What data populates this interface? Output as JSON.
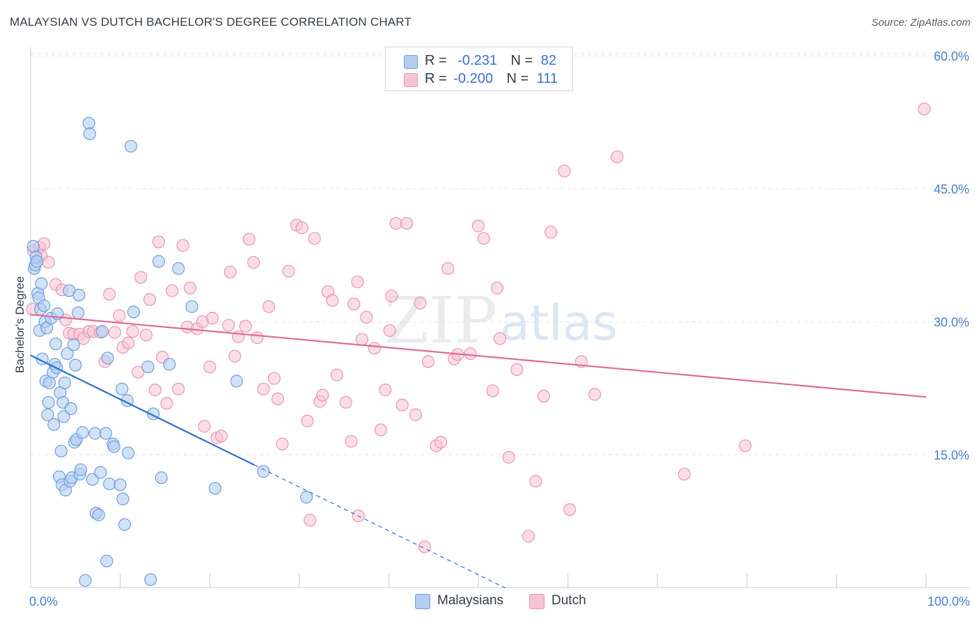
{
  "title": "MALAYSIAN VS DUTCH BACHELOR'S DEGREE CORRELATION CHART",
  "source": "Source: ZipAtlas.com",
  "watermark": {
    "zip": "ZIP",
    "atlas": "atlas"
  },
  "legend": {
    "rows": [
      {
        "r_label": "R =",
        "r_value": "-0.231",
        "n_label": "N =",
        "n_value": "82"
      },
      {
        "r_label": "R =",
        "r_value": "-0.200",
        "n_label": "N =",
        "n_value": "111"
      }
    ]
  },
  "bottom_legend": [
    "Malaysians",
    "Dutch"
  ],
  "colors": {
    "blue_fill": "#b3cdf0",
    "blue_stroke": "#6f9ede",
    "blue_line": "#2f6fd3",
    "pink_fill": "#f6c3d3",
    "pink_stroke": "#ec94b3",
    "pink_line": "#e0689a",
    "grid": "#dde1e6",
    "axis_text": "#4a7fd0"
  },
  "chart_data": {
    "type": "scatter",
    "title": "MALAYSIAN VS DUTCH BACHELOR'S DEGREE CORRELATION CHART",
    "xlabel": "",
    "ylabel": "Bachelor's Degree",
    "xlim": [
      0,
      100
    ],
    "ylim": [
      0,
      61
    ],
    "y_ticks": [
      15,
      30,
      45,
      60
    ],
    "y_tick_labels": [
      "15.0%",
      "30.0%",
      "45.0%",
      "60.0%"
    ],
    "x_tick_labels": [
      "0.0%",
      "100.0%"
    ],
    "grid": true,
    "series": [
      {
        "name": "Malaysians",
        "r": -0.231,
        "n": 82,
        "trend": {
          "x0": 0,
          "y0": 26.2,
          "x_solid_end": 25,
          "x_dash_end": 53,
          "slope": -0.495
        },
        "points": [
          [
            0.3,
            38.5
          ],
          [
            0.4,
            36.0
          ],
          [
            0.5,
            36.4
          ],
          [
            0.6,
            37.3
          ],
          [
            0.7,
            36.8
          ],
          [
            0.8,
            33.2
          ],
          [
            0.9,
            32.7
          ],
          [
            1.0,
            29.0
          ],
          [
            1.1,
            31.4
          ],
          [
            1.2,
            34.3
          ],
          [
            1.3,
            25.8
          ],
          [
            1.5,
            31.8
          ],
          [
            1.6,
            30.0
          ],
          [
            1.7,
            23.3
          ],
          [
            1.8,
            29.3
          ],
          [
            1.9,
            19.5
          ],
          [
            2.0,
            20.9
          ],
          [
            2.1,
            23.1
          ],
          [
            2.3,
            30.4
          ],
          [
            2.5,
            24.3
          ],
          [
            2.6,
            18.4
          ],
          [
            2.7,
            25.2
          ],
          [
            2.8,
            27.5
          ],
          [
            2.9,
            24.8
          ],
          [
            3.0,
            30.9
          ],
          [
            3.2,
            12.5
          ],
          [
            3.3,
            22.0
          ],
          [
            3.4,
            15.4
          ],
          [
            3.5,
            11.6
          ],
          [
            3.6,
            20.9
          ],
          [
            3.7,
            19.3
          ],
          [
            3.8,
            23.1
          ],
          [
            3.9,
            11.0
          ],
          [
            4.1,
            26.4
          ],
          [
            4.3,
            33.5
          ],
          [
            4.4,
            12.0
          ],
          [
            4.5,
            20.2
          ],
          [
            4.6,
            12.4
          ],
          [
            4.8,
            27.4
          ],
          [
            4.9,
            16.4
          ],
          [
            5.0,
            25.1
          ],
          [
            5.1,
            16.7
          ],
          [
            5.3,
            31.0
          ],
          [
            5.4,
            33.0
          ],
          [
            5.5,
            12.8
          ],
          [
            5.6,
            13.3
          ],
          [
            5.8,
            17.5
          ],
          [
            6.1,
            0.8
          ],
          [
            6.5,
            52.4
          ],
          [
            6.6,
            51.2
          ],
          [
            6.9,
            12.2
          ],
          [
            7.2,
            17.4
          ],
          [
            7.3,
            8.4
          ],
          [
            7.6,
            8.2
          ],
          [
            7.8,
            13.0
          ],
          [
            8.0,
            28.9
          ],
          [
            8.4,
            17.4
          ],
          [
            8.5,
            3.0
          ],
          [
            8.6,
            25.9
          ],
          [
            8.8,
            11.7
          ],
          [
            9.2,
            16.2
          ],
          [
            9.3,
            15.9
          ],
          [
            10.0,
            11.6
          ],
          [
            10.2,
            22.4
          ],
          [
            10.3,
            10.0
          ],
          [
            10.5,
            7.1
          ],
          [
            10.8,
            21.1
          ],
          [
            10.9,
            15.2
          ],
          [
            11.2,
            49.8
          ],
          [
            11.5,
            31.1
          ],
          [
            13.1,
            24.9
          ],
          [
            13.4,
            0.9
          ],
          [
            13.7,
            19.6
          ],
          [
            14.3,
            36.8
          ],
          [
            14.6,
            12.4
          ],
          [
            15.5,
            25.2
          ],
          [
            16.5,
            36.0
          ],
          [
            18.0,
            31.7
          ],
          [
            20.6,
            11.2
          ],
          [
            23.0,
            23.3
          ],
          [
            26.0,
            13.1
          ],
          [
            30.8,
            10.2
          ]
        ]
      },
      {
        "name": "Dutch",
        "r": -0.2,
        "n": 111,
        "trend": {
          "x0": 0,
          "y0": 30.8,
          "x_end": 100,
          "y_end": 21.5
        },
        "points": [
          [
            0.2,
            31.4
          ],
          [
            0.3,
            38.0
          ],
          [
            1.0,
            38.4
          ],
          [
            1.2,
            37.4
          ],
          [
            1.5,
            38.8
          ],
          [
            2.0,
            36.7
          ],
          [
            2.8,
            34.2
          ],
          [
            3.5,
            33.6
          ],
          [
            3.9,
            30.2
          ],
          [
            4.3,
            28.7
          ],
          [
            4.8,
            28.6
          ],
          [
            5.5,
            28.6
          ],
          [
            5.9,
            28.1
          ],
          [
            6.5,
            28.9
          ],
          [
            7.0,
            28.9
          ],
          [
            7.8,
            28.8
          ],
          [
            8.3,
            25.5
          ],
          [
            8.8,
            33.1
          ],
          [
            9.4,
            28.8
          ],
          [
            9.9,
            30.7
          ],
          [
            10.3,
            27.1
          ],
          [
            10.9,
            27.6
          ],
          [
            11.4,
            28.9
          ],
          [
            12.0,
            24.3
          ],
          [
            12.3,
            35.0
          ],
          [
            12.9,
            28.5
          ],
          [
            13.3,
            32.5
          ],
          [
            13.9,
            22.3
          ],
          [
            14.3,
            39.0
          ],
          [
            14.7,
            26.0
          ],
          [
            15.2,
            20.8
          ],
          [
            15.8,
            33.5
          ],
          [
            16.5,
            22.4
          ],
          [
            17.0,
            38.6
          ],
          [
            17.5,
            29.4
          ],
          [
            17.8,
            33.8
          ],
          [
            18.6,
            29.2
          ],
          [
            19.2,
            30.0
          ],
          [
            19.4,
            18.2
          ],
          [
            20.0,
            24.9
          ],
          [
            20.3,
            30.4
          ],
          [
            20.8,
            16.9
          ],
          [
            21.3,
            17.1
          ],
          [
            22.1,
            29.6
          ],
          [
            22.3,
            35.6
          ],
          [
            22.8,
            26.1
          ],
          [
            23.2,
            28.3
          ],
          [
            24.0,
            29.5
          ],
          [
            24.4,
            39.3
          ],
          [
            24.9,
            36.7
          ],
          [
            25.3,
            28.2
          ],
          [
            26.0,
            22.4
          ],
          [
            26.6,
            31.7
          ],
          [
            27.2,
            23.6
          ],
          [
            27.6,
            21.3
          ],
          [
            28.1,
            16.2
          ],
          [
            28.8,
            35.7
          ],
          [
            29.7,
            40.9
          ],
          [
            30.3,
            40.6
          ],
          [
            30.9,
            18.8
          ],
          [
            31.2,
            7.6
          ],
          [
            31.7,
            39.4
          ],
          [
            32.3,
            21.0
          ],
          [
            32.6,
            21.7
          ],
          [
            33.2,
            33.4
          ],
          [
            33.7,
            32.4
          ],
          [
            34.2,
            24.0
          ],
          [
            35.2,
            20.9
          ],
          [
            35.8,
            16.5
          ],
          [
            36.1,
            32.0
          ],
          [
            36.5,
            34.5
          ],
          [
            36.6,
            8.1
          ],
          [
            37.0,
            28.0
          ],
          [
            37.5,
            30.5
          ],
          [
            38.4,
            27.0
          ],
          [
            39.1,
            17.8
          ],
          [
            39.6,
            22.3
          ],
          [
            40.1,
            29.0
          ],
          [
            40.3,
            32.9
          ],
          [
            40.8,
            41.1
          ],
          [
            41.5,
            20.6
          ],
          [
            42.0,
            41.1
          ],
          [
            43.0,
            19.5
          ],
          [
            43.5,
            32.1
          ],
          [
            44.0,
            4.6
          ],
          [
            44.4,
            25.5
          ],
          [
            45.3,
            16.0
          ],
          [
            45.8,
            16.4
          ],
          [
            46.6,
            36.0
          ],
          [
            47.3,
            25.8
          ],
          [
            47.7,
            26.3
          ],
          [
            49.1,
            26.4
          ],
          [
            50.0,
            40.8
          ],
          [
            50.6,
            39.4
          ],
          [
            51.6,
            22.2
          ],
          [
            52.1,
            33.8
          ],
          [
            52.4,
            28.1
          ],
          [
            53.4,
            14.7
          ],
          [
            54.3,
            24.6
          ],
          [
            55.6,
            5.8
          ],
          [
            56.4,
            12.0
          ],
          [
            57.3,
            21.6
          ],
          [
            58.1,
            40.1
          ],
          [
            59.6,
            47.0
          ],
          [
            60.2,
            8.8
          ],
          [
            61.5,
            25.5
          ],
          [
            63.0,
            21.8
          ],
          [
            65.5,
            48.6
          ],
          [
            73.0,
            12.8
          ],
          [
            79.8,
            16.0
          ],
          [
            99.8,
            54.0
          ]
        ]
      }
    ]
  }
}
